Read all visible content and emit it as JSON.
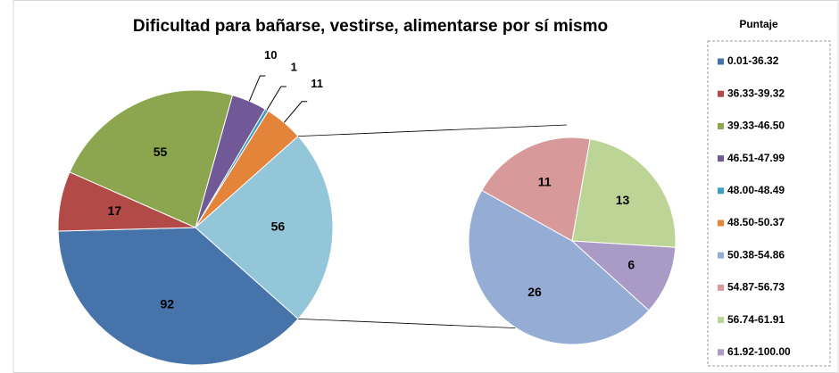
{
  "chart_data": {
    "type": "pie_of_pie",
    "title": "Dificultad para bañarse, vestirse, alimentarse por sí mismo",
    "legend_title": "Puntaje",
    "legend": "right",
    "categories": [
      "0.01-36.32",
      "36.33-39.32",
      "39.33-46.50",
      "46.51-47.99",
      "48.00-48.49",
      "48.50-50.37",
      "50.38-54.86",
      "54.87-56.73",
      "56.74-61.91",
      "61.92-100.00"
    ],
    "values": [
      92,
      17,
      55,
      10,
      1,
      11,
      26,
      11,
      13,
      6
    ],
    "colors": [
      "#4674aa",
      "#b24a47",
      "#8ba64e",
      "#715896",
      "#3f9ebf",
      "#e3843a",
      "#95acd4",
      "#d7999a",
      "#bcd596",
      "#a99bc5"
    ],
    "split_index": 6,
    "other_value": 56,
    "other_color": "#93c6d9"
  }
}
